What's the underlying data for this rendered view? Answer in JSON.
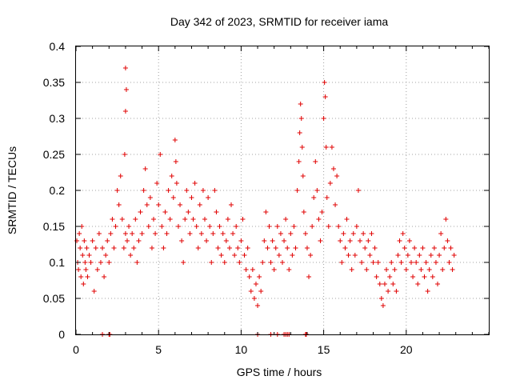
{
  "chart_data": {
    "type": "scatter",
    "title": "Day 342 of 2023, SRMTID for receiver iama",
    "xlabel": "GPS time / hours",
    "ylabel": "SRMTID / TECUs",
    "xlim": [
      0,
      25
    ],
    "ylim": [
      0,
      0.4
    ],
    "x_ticks": [
      0,
      5,
      10,
      15,
      20
    ],
    "x_tick_labels": [
      "0",
      "5",
      "10",
      "15",
      "20"
    ],
    "y_ticks": [
      0,
      0.05,
      0.1,
      0.15,
      0.2,
      0.25,
      0.3,
      0.35,
      0.4
    ],
    "y_tick_labels": [
      "0",
      "0.05",
      "0.1",
      "0.15",
      "0.2",
      "0.25",
      "0.3",
      "0.35",
      "0.4"
    ],
    "grid": true,
    "marker": "plus",
    "color": "#e00000",
    "series": [
      {
        "name": "SRMTID",
        "points": [
          [
            0.05,
            0.13
          ],
          [
            0.1,
            0.1
          ],
          [
            0.15,
            0.09
          ],
          [
            0.2,
            0.14
          ],
          [
            0.25,
            0.12
          ],
          [
            0.3,
            0.08
          ],
          [
            0.35,
            0.15
          ],
          [
            0.4,
            0.11
          ],
          [
            0.45,
            0.07
          ],
          [
            0.5,
            0.13
          ],
          [
            0.55,
            0.1
          ],
          [
            0.6,
            0.09
          ],
          [
            0.65,
            0.12
          ],
          [
            0.7,
            0.08
          ],
          [
            0.8,
            0.11
          ],
          [
            0.9,
            0.1
          ],
          [
            1.0,
            0.13
          ],
          [
            1.1,
            0.06
          ],
          [
            1.2,
            0.12
          ],
          [
            1.3,
            0.09
          ],
          [
            1.4,
            0.14
          ],
          [
            1.5,
            0.1
          ],
          [
            1.6,
            0.12
          ],
          [
            1.7,
            0.08
          ],
          [
            1.8,
            0.11
          ],
          [
            1.9,
            0.13
          ],
          [
            2.0,
            0.1
          ],
          [
            2.1,
            0.14
          ],
          [
            2.2,
            0.16
          ],
          [
            2.3,
            0.12
          ],
          [
            2.4,
            0.15
          ],
          [
            2.5,
            0.2
          ],
          [
            2.6,
            0.18
          ],
          [
            2.7,
            0.22
          ],
          [
            2.8,
            0.16
          ],
          [
            2.9,
            0.12
          ],
          [
            3.0,
            0.14
          ],
          [
            3.0,
            0.37
          ],
          [
            3.05,
            0.34
          ],
          [
            3.0,
            0.31
          ],
          [
            2.95,
            0.25
          ],
          [
            3.1,
            0.13
          ],
          [
            3.2,
            0.15
          ],
          [
            3.3,
            0.11
          ],
          [
            3.4,
            0.14
          ],
          [
            3.5,
            0.12
          ],
          [
            3.6,
            0.16
          ],
          [
            3.7,
            0.1
          ],
          [
            3.8,
            0.13
          ],
          [
            3.9,
            0.17
          ],
          [
            4.0,
            0.14
          ],
          [
            4.1,
            0.2
          ],
          [
            4.2,
            0.23
          ],
          [
            4.3,
            0.18
          ],
          [
            4.4,
            0.15
          ],
          [
            4.5,
            0.19
          ],
          [
            4.6,
            0.12
          ],
          [
            4.7,
            0.16
          ],
          [
            4.8,
            0.14
          ],
          [
            4.9,
            0.21
          ],
          [
            5.0,
            0.18
          ],
          [
            5.1,
            0.25
          ],
          [
            5.2,
            0.15
          ],
          [
            5.3,
            0.12
          ],
          [
            5.4,
            0.17
          ],
          [
            5.5,
            0.14
          ],
          [
            5.6,
            0.2
          ],
          [
            5.7,
            0.16
          ],
          [
            5.8,
            0.22
          ],
          [
            5.9,
            0.19
          ],
          [
            6.0,
            0.27
          ],
          [
            6.05,
            0.24
          ],
          [
            6.1,
            0.21
          ],
          [
            6.2,
            0.15
          ],
          [
            6.3,
            0.18
          ],
          [
            6.4,
            0.13
          ],
          [
            6.5,
            0.1
          ],
          [
            6.6,
            0.16
          ],
          [
            6.7,
            0.2
          ],
          [
            6.8,
            0.17
          ],
          [
            6.9,
            0.14
          ],
          [
            7.0,
            0.19
          ],
          [
            7.1,
            0.16
          ],
          [
            7.2,
            0.21
          ],
          [
            7.3,
            0.15
          ],
          [
            7.4,
            0.12
          ],
          [
            7.5,
            0.18
          ],
          [
            7.6,
            0.14
          ],
          [
            7.7,
            0.2
          ],
          [
            7.8,
            0.16
          ],
          [
            7.9,
            0.13
          ],
          [
            8.0,
            0.19
          ],
          [
            8.1,
            0.15
          ],
          [
            8.2,
            0.1
          ],
          [
            8.3,
            0.14
          ],
          [
            8.4,
            0.2
          ],
          [
            8.5,
            0.17
          ],
          [
            8.6,
            0.12
          ],
          [
            8.7,
            0.15
          ],
          [
            8.8,
            0.11
          ],
          [
            8.9,
            0.14
          ],
          [
            9.0,
            0.1
          ],
          [
            9.1,
            0.13
          ],
          [
            9.2,
            0.16
          ],
          [
            9.3,
            0.12
          ],
          [
            9.4,
            0.18
          ],
          [
            9.5,
            0.14
          ],
          [
            9.6,
            0.11
          ],
          [
            9.7,
            0.15
          ],
          [
            9.8,
            0.12
          ],
          [
            9.9,
            0.1
          ],
          [
            10.0,
            0.13
          ],
          [
            10.1,
            0.16
          ],
          [
            10.2,
            0.11
          ],
          [
            10.3,
            0.09
          ],
          [
            10.4,
            0.12
          ],
          [
            10.5,
            0.08
          ],
          [
            10.6,
            0.06
          ],
          [
            10.7,
            0.09
          ],
          [
            10.8,
            0.05
          ],
          [
            10.9,
            0.07
          ],
          [
            11.0,
            0.04
          ],
          [
            11.1,
            0.08
          ],
          [
            11.2,
            0.06
          ],
          [
            11.3,
            0.1
          ],
          [
            11.4,
            0.13
          ],
          [
            11.5,
            0.17
          ],
          [
            11.6,
            0.12
          ],
          [
            11.7,
            0.15
          ],
          [
            11.8,
            0.1
          ],
          [
            11.9,
            0.13
          ],
          [
            12.0,
            0.09
          ],
          [
            12.1,
            0.12
          ],
          [
            12.2,
            0.15
          ],
          [
            12.3,
            0.11
          ],
          [
            12.4,
            0.14
          ],
          [
            12.5,
            0.1
          ],
          [
            12.6,
            0.13
          ],
          [
            12.7,
            0.16
          ],
          [
            12.8,
            0.12
          ],
          [
            12.9,
            0.09
          ],
          [
            13.0,
            0.14
          ],
          [
            13.1,
            0.11
          ],
          [
            13.2,
            0.15
          ],
          [
            13.3,
            0.12
          ],
          [
            13.4,
            0.2
          ],
          [
            13.5,
            0.24
          ],
          [
            13.55,
            0.28
          ],
          [
            13.6,
            0.32
          ],
          [
            13.65,
            0.3
          ],
          [
            13.7,
            0.26
          ],
          [
            13.75,
            0.22
          ],
          [
            13.8,
            0.17
          ],
          [
            13.9,
            0.14
          ],
          [
            14.0,
            0.12
          ],
          [
            14.1,
            0.08
          ],
          [
            14.2,
            0.11
          ],
          [
            14.3,
            0.15
          ],
          [
            14.4,
            0.19
          ],
          [
            14.5,
            0.24
          ],
          [
            14.6,
            0.2
          ],
          [
            14.7,
            0.16
          ],
          [
            14.8,
            0.13
          ],
          [
            14.9,
            0.17
          ],
          [
            15.0,
            0.3
          ],
          [
            15.05,
            0.35
          ],
          [
            15.1,
            0.33
          ],
          [
            15.15,
            0.26
          ],
          [
            15.2,
            0.19
          ],
          [
            15.3,
            0.15
          ],
          [
            15.4,
            0.21
          ],
          [
            15.5,
            0.26
          ],
          [
            15.6,
            0.23
          ],
          [
            15.7,
            0.18
          ],
          [
            15.8,
            0.22
          ],
          [
            15.9,
            0.15
          ],
          [
            16.0,
            0.13
          ],
          [
            16.1,
            0.1
          ],
          [
            16.2,
            0.14
          ],
          [
            16.3,
            0.12
          ],
          [
            16.4,
            0.16
          ],
          [
            16.5,
            0.11
          ],
          [
            16.6,
            0.13
          ],
          [
            16.7,
            0.09
          ],
          [
            16.8,
            0.14
          ],
          [
            16.9,
            0.11
          ],
          [
            17.0,
            0.15
          ],
          [
            17.1,
            0.2
          ],
          [
            17.2,
            0.13
          ],
          [
            17.3,
            0.1
          ],
          [
            17.4,
            0.14
          ],
          [
            17.5,
            0.12
          ],
          [
            17.6,
            0.09
          ],
          [
            17.7,
            0.13
          ],
          [
            17.8,
            0.11
          ],
          [
            17.9,
            0.14
          ],
          [
            18.0,
            0.1
          ],
          [
            18.1,
            0.12
          ],
          [
            18.2,
            0.08
          ],
          [
            18.3,
            0.1
          ],
          [
            18.4,
            0.07
          ],
          [
            18.5,
            0.05
          ],
          [
            18.6,
            0.04
          ],
          [
            18.7,
            0.07
          ],
          [
            18.8,
            0.09
          ],
          [
            18.9,
            0.06
          ],
          [
            19.0,
            0.08
          ],
          [
            19.1,
            0.1
          ],
          [
            19.2,
            0.07
          ],
          [
            19.3,
            0.09
          ],
          [
            19.4,
            0.06
          ],
          [
            19.5,
            0.11
          ],
          [
            19.6,
            0.13
          ],
          [
            19.7,
            0.1
          ],
          [
            19.8,
            0.14
          ],
          [
            19.9,
            0.12
          ],
          [
            20.0,
            0.09
          ],
          [
            20.1,
            0.11
          ],
          [
            20.2,
            0.13
          ],
          [
            20.3,
            0.1
          ],
          [
            20.4,
            0.08
          ],
          [
            20.5,
            0.12
          ],
          [
            20.6,
            0.1
          ],
          [
            20.7,
            0.07
          ],
          [
            20.8,
            0.11
          ],
          [
            20.9,
            0.09
          ],
          [
            21.0,
            0.12
          ],
          [
            21.1,
            0.08
          ],
          [
            21.2,
            0.1
          ],
          [
            21.3,
            0.06
          ],
          [
            21.4,
            0.09
          ],
          [
            21.5,
            0.11
          ],
          [
            21.6,
            0.08
          ],
          [
            21.7,
            0.12
          ],
          [
            21.8,
            0.1
          ],
          [
            21.9,
            0.07
          ],
          [
            22.0,
            0.11
          ],
          [
            22.1,
            0.14
          ],
          [
            22.2,
            0.09
          ],
          [
            22.3,
            0.12
          ],
          [
            22.4,
            0.16
          ],
          [
            22.5,
            0.13
          ],
          [
            22.6,
            0.1
          ],
          [
            22.7,
            0.12
          ],
          [
            22.8,
            0.09
          ],
          [
            22.9,
            0.11
          ],
          [
            1.6,
            0.0
          ],
          [
            2.0,
            0.0
          ],
          [
            2.05,
            0.0
          ],
          [
            11.0,
            0.0
          ],
          [
            11.8,
            0.0
          ],
          [
            12.2,
            0.0
          ],
          [
            12.6,
            0.0
          ],
          [
            12.7,
            0.0
          ],
          [
            12.8,
            0.0
          ],
          [
            12.9,
            0.0
          ],
          [
            13.9,
            0.0
          ],
          [
            13.95,
            0.0
          ]
        ]
      }
    ]
  }
}
